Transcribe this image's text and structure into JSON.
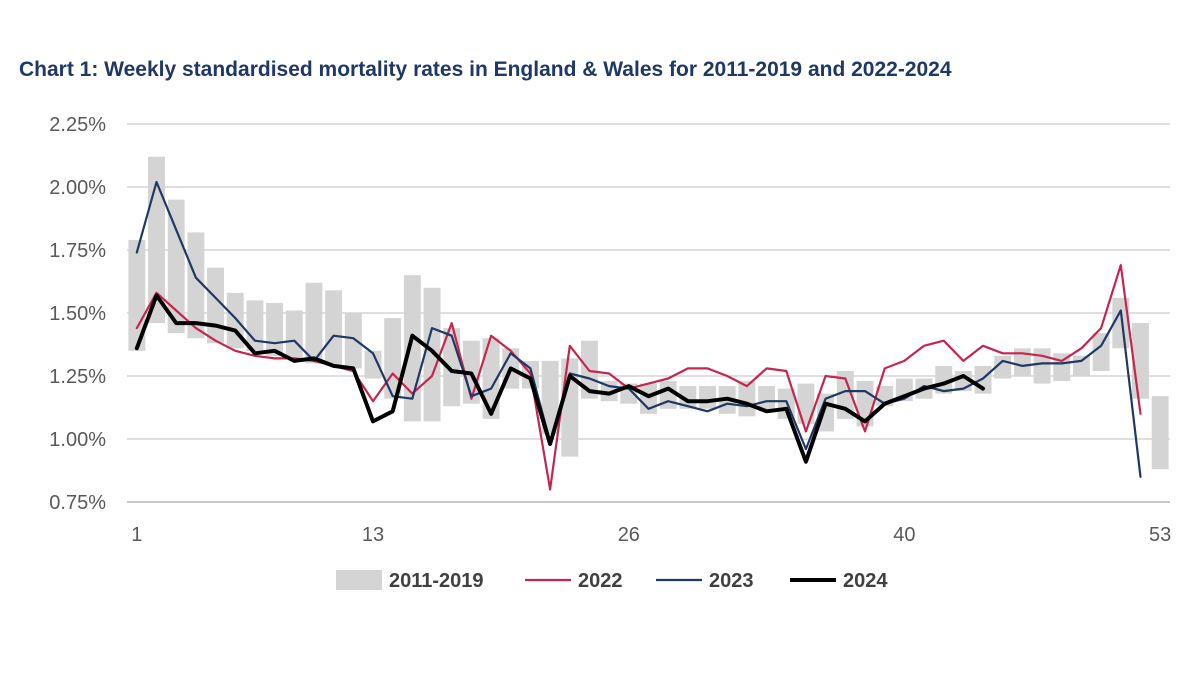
{
  "chart_data": {
    "type": "bar+line",
    "title": "Chart 1: Weekly standardised mortality rates in England & Wales for 2011-2019 and 2022-2024",
    "xlabel": "",
    "ylabel": "",
    "ylim": [
      0.75,
      2.25
    ],
    "xlim": [
      1,
      53
    ],
    "y_ticks": [
      "0.75%",
      "1.00%",
      "1.25%",
      "1.50%",
      "1.75%",
      "2.00%",
      "2.25%"
    ],
    "x_ticks": [
      "1",
      "13",
      "26",
      "40",
      "53"
    ],
    "grid": true,
    "legend_position": "bottom",
    "range_series": {
      "name": "2011-2019",
      "color": "#d4d4d4",
      "weeks": [
        1,
        2,
        3,
        4,
        5,
        6,
        7,
        8,
        9,
        10,
        11,
        12,
        13,
        14,
        15,
        16,
        17,
        18,
        19,
        20,
        21,
        22,
        23,
        24,
        25,
        26,
        27,
        28,
        29,
        30,
        31,
        32,
        33,
        34,
        35,
        36,
        37,
        38,
        39,
        40,
        41,
        42,
        43,
        44,
        45,
        46,
        47,
        48,
        49,
        50,
        51,
        52,
        53
      ],
      "low": [
        1.35,
        1.46,
        1.42,
        1.4,
        1.38,
        1.36,
        1.35,
        1.33,
        1.32,
        1.3,
        1.29,
        1.28,
        1.24,
        1.16,
        1.07,
        1.07,
        1.13,
        1.14,
        1.08,
        1.2,
        1.2,
        1.02,
        0.93,
        1.16,
        1.15,
        1.14,
        1.1,
        1.12,
        1.12,
        1.12,
        1.1,
        1.09,
        1.11,
        1.08,
        1.06,
        1.03,
        1.08,
        1.05,
        1.13,
        1.15,
        1.16,
        1.18,
        1.19,
        1.18,
        1.24,
        1.25,
        1.22,
        1.23,
        1.25,
        1.27,
        1.36,
        1.16,
        0.88
      ],
      "high": [
        1.79,
        2.12,
        1.95,
        1.82,
        1.68,
        1.58,
        1.55,
        1.54,
        1.51,
        1.62,
        1.59,
        1.5,
        1.35,
        1.48,
        1.65,
        1.6,
        1.44,
        1.39,
        1.4,
        1.36,
        1.31,
        1.31,
        1.32,
        1.39,
        1.23,
        1.22,
        1.22,
        1.23,
        1.21,
        1.21,
        1.21,
        1.23,
        1.21,
        1.2,
        1.22,
        1.18,
        1.27,
        1.23,
        1.21,
        1.24,
        1.24,
        1.29,
        1.27,
        1.29,
        1.33,
        1.36,
        1.36,
        1.34,
        1.33,
        1.42,
        1.56,
        1.46,
        1.17
      ]
    },
    "series": [
      {
        "name": "2022",
        "color": "#c7254e",
        "weeks": [
          1,
          2,
          3,
          4,
          5,
          6,
          7,
          8,
          9,
          10,
          11,
          12,
          13,
          14,
          15,
          16,
          17,
          18,
          19,
          20,
          21,
          22,
          23,
          24,
          25,
          26,
          27,
          28,
          29,
          30,
          31,
          32,
          33,
          34,
          35,
          36,
          37,
          38,
          39,
          40,
          41,
          42,
          43,
          44,
          45,
          46,
          47,
          48,
          49,
          50,
          51,
          52
        ],
        "values": [
          1.44,
          1.58,
          1.51,
          1.44,
          1.39,
          1.35,
          1.33,
          1.32,
          1.32,
          1.31,
          1.29,
          1.27,
          1.15,
          1.26,
          1.18,
          1.25,
          1.46,
          1.16,
          1.41,
          1.35,
          1.26,
          0.8,
          1.37,
          1.27,
          1.26,
          1.2,
          1.22,
          1.24,
          1.28,
          1.28,
          1.25,
          1.21,
          1.28,
          1.27,
          1.03,
          1.25,
          1.24,
          1.03,
          1.28,
          1.31,
          1.37,
          1.39,
          1.31,
          1.37,
          1.34,
          1.34,
          1.33,
          1.31,
          1.36,
          1.44,
          1.69,
          1.1
        ]
      },
      {
        "name": "2023",
        "color": "#1f3864",
        "weeks": [
          1,
          2,
          3,
          4,
          5,
          6,
          7,
          8,
          9,
          10,
          11,
          12,
          13,
          14,
          15,
          16,
          17,
          18,
          19,
          20,
          21,
          22,
          23,
          24,
          25,
          26,
          27,
          28,
          29,
          30,
          31,
          32,
          33,
          34,
          35,
          36,
          37,
          38,
          39,
          40,
          41,
          42,
          43,
          44,
          45,
          46,
          47,
          48,
          49,
          50,
          51,
          52
        ],
        "values": [
          1.74,
          2.02,
          1.83,
          1.64,
          1.56,
          1.48,
          1.39,
          1.38,
          1.39,
          1.31,
          1.41,
          1.4,
          1.34,
          1.17,
          1.16,
          1.44,
          1.41,
          1.17,
          1.2,
          1.34,
          1.28,
          0.99,
          1.26,
          1.24,
          1.21,
          1.2,
          1.12,
          1.15,
          1.13,
          1.11,
          1.14,
          1.13,
          1.15,
          1.15,
          0.96,
          1.16,
          1.19,
          1.19,
          1.14,
          1.16,
          1.21,
          1.19,
          1.2,
          1.24,
          1.31,
          1.29,
          1.3,
          1.3,
          1.31,
          1.37,
          1.51,
          0.85
        ]
      },
      {
        "name": "2024",
        "color": "#000000",
        "weeks": [
          1,
          2,
          3,
          4,
          5,
          6,
          7,
          8,
          9,
          10,
          11,
          12,
          13,
          14,
          15,
          16,
          17,
          18,
          19,
          20,
          21,
          22,
          23,
          24,
          25,
          26,
          27,
          28,
          29,
          30,
          31,
          32,
          33,
          34,
          35,
          36,
          37,
          38,
          39,
          40,
          41,
          42,
          43,
          44
        ],
        "values": [
          1.36,
          1.57,
          1.46,
          1.46,
          1.45,
          1.43,
          1.34,
          1.35,
          1.31,
          1.32,
          1.29,
          1.28,
          1.07,
          1.11,
          1.41,
          1.35,
          1.27,
          1.26,
          1.1,
          1.28,
          1.24,
          0.98,
          1.25,
          1.19,
          1.18,
          1.21,
          1.17,
          1.2,
          1.15,
          1.15,
          1.16,
          1.14,
          1.11,
          1.12,
          0.91,
          1.14,
          1.12,
          1.07,
          1.14,
          1.17,
          1.2,
          1.22,
          1.25,
          1.2
        ]
      }
    ]
  }
}
